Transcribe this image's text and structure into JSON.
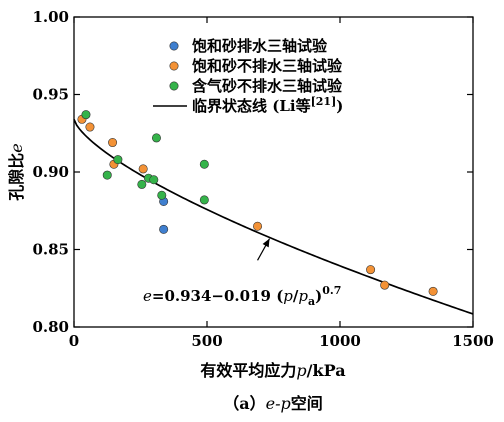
{
  "chart_data": {
    "type": "scatter",
    "xlabel_main": "有效平均应力",
    "xlabel_var": "p",
    "xlabel_unit": "/kPa",
    "ylabel_main": "孔隙比",
    "ylabel_var": "e",
    "xlim": [
      0,
      1500
    ],
    "ylim": [
      0.8,
      1.0
    ],
    "xticks": [
      0,
      500,
      1000,
      1500
    ],
    "xtick_labels": [
      "0",
      "500",
      "1000",
      "1500"
    ],
    "yticks": [
      0.8,
      0.85,
      0.9,
      0.95,
      1.0
    ],
    "ytick_labels": [
      "0.80",
      "0.85",
      "0.90",
      "0.95",
      "1.00"
    ],
    "caption_prefix": "（a）",
    "caption_var": "e-p",
    "caption_suffix": "空间",
    "legend_position": "top-right",
    "series": [
      {
        "name": "饱和砂排水三轴试验",
        "color": "#3f7fcf",
        "points": [
          [
            337,
            0.881
          ],
          [
            337,
            0.863
          ]
        ]
      },
      {
        "name": "饱和砂不排水三轴试验",
        "color": "#f39236",
        "points": [
          [
            30,
            0.934
          ],
          [
            60,
            0.929
          ],
          [
            145,
            0.919
          ],
          [
            150,
            0.905
          ],
          [
            260,
            0.902
          ],
          [
            690,
            0.865
          ],
          [
            1115,
            0.837
          ],
          [
            1168,
            0.827
          ],
          [
            1350,
            0.823
          ]
        ]
      },
      {
        "name": "含气砂不排水三轴试验",
        "color": "#35b34a",
        "points": [
          [
            45,
            0.937
          ],
          [
            125,
            0.898
          ],
          [
            165,
            0.908
          ],
          [
            255,
            0.892
          ],
          [
            280,
            0.896
          ],
          [
            300,
            0.895
          ],
          [
            310,
            0.922
          ],
          [
            330,
            0.885
          ],
          [
            490,
            0.905
          ],
          [
            490,
            0.882
          ]
        ]
      }
    ],
    "csl": {
      "name_main": "临界状态线 (Li等",
      "name_ref": "[21]",
      "name_close": ")",
      "a": 0.934,
      "b": 0.019,
      "pa": 101,
      "exponent": 0.7,
      "color": "#000000"
    },
    "annotation": {
      "e_var": "e",
      "eq_mid": "=0.934−0.019 (",
      "p_var": "p",
      "slash": "/",
      "pa_var": "p",
      "pa_sub": "a",
      "close": ")",
      "exp": "0.7",
      "arrow_from": [
        690,
        0.843
      ],
      "arrow_to": [
        735,
        0.857
      ]
    }
  }
}
